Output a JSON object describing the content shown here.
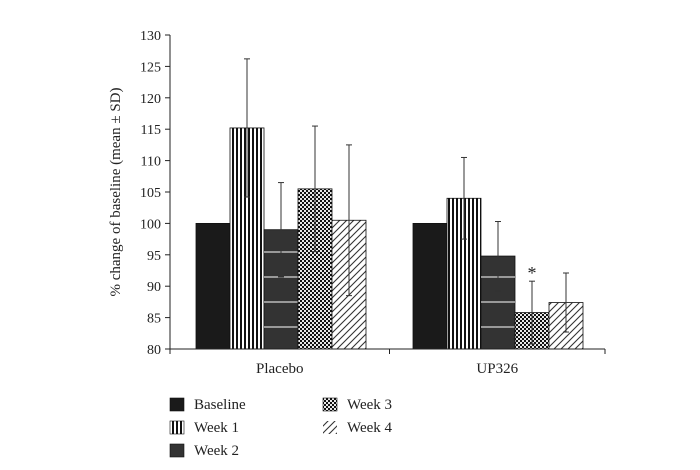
{
  "chart_data": {
    "type": "bar",
    "title": "",
    "xlabel": "",
    "ylabel": "% change of baseline (mean ± SD)",
    "ylim": [
      80,
      130
    ],
    "yticks": [
      80,
      85,
      90,
      95,
      100,
      105,
      110,
      115,
      120,
      125,
      130
    ],
    "categories": [
      "Placebo",
      "UP326"
    ],
    "series": [
      {
        "name": "Baseline",
        "pattern": "solid-black",
        "values": [
          100,
          100
        ],
        "sd": [
          null,
          null
        ]
      },
      {
        "name": "Week 1",
        "pattern": "vertical-stripes",
        "values": [
          115.2,
          104.0
        ],
        "sd": [
          11.0,
          6.5
        ]
      },
      {
        "name": "Week 2",
        "pattern": "dark-gray-with-white-lines",
        "values": [
          99.0,
          94.8
        ],
        "sd": [
          7.5,
          5.5
        ]
      },
      {
        "name": "Week 3",
        "pattern": "checkerboard",
        "values": [
          105.5,
          85.8
        ],
        "sd": [
          10.0,
          5.0
        ]
      },
      {
        "name": "Week 4",
        "pattern": "diagonal-hatch",
        "values": [
          100.5,
          87.4
        ],
        "sd": [
          12.0,
          4.7
        ]
      }
    ],
    "annotations": [
      {
        "text": "*",
        "category": "UP326",
        "series": "Week 3"
      }
    ],
    "grid": false,
    "legend_position": "bottom-left"
  }
}
